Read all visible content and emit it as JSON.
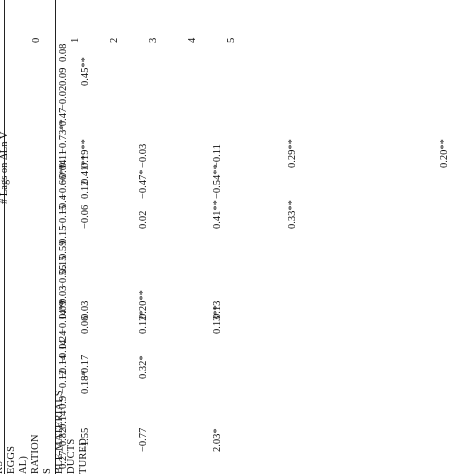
{
  "table": {
    "header_group": "# Lags on ΔLn V",
    "lag_headers": [
      "0",
      "1",
      "2",
      "3",
      "4",
      "5"
    ],
    "row_labels": [
      "RS",
      "EGGS",
      "AL)",
      "RATION",
      "S",
      "BLE MATERIALS",
      "DUCTS",
      "TURED"
    ],
    "col0": [
      "0.08",
      "0.09",
      "−0.02",
      "−0.47",
      "−0.73**",
      "0.11",
      "−0.04",
      "−0.66**",
      "−0.4",
      "−0.15",
      "0.15",
      "0.59",
      "0.15",
      "−0.55",
      "0.03",
      "0.09",
      "−0.14**",
      "0.24",
      "−0.14",
      "−0.14",
      "−0.12",
      "0.9",
      "0.14",
      "−0.82",
      "0.27"
    ],
    "col1": [
      "0.45**",
      "0.19**",
      "0.41**",
      "0.12",
      "−0.06",
      "0.03",
      "0.06",
      "−0.17",
      "0.18*",
      "−1.55"
    ],
    "col2": [
      "−0.03",
      "−0.47*",
      "0.02",
      "0.20**",
      "0.12*",
      "0.32*",
      "−0.77"
    ],
    "col3": [
      "−0.11",
      "−0.54**",
      "0.41**",
      "0.13",
      "0.13**",
      "2.03*"
    ],
    "col4": [
      "0.29**",
      "0.33**"
    ],
    "col5": [
      "0.20**"
    ]
  }
}
